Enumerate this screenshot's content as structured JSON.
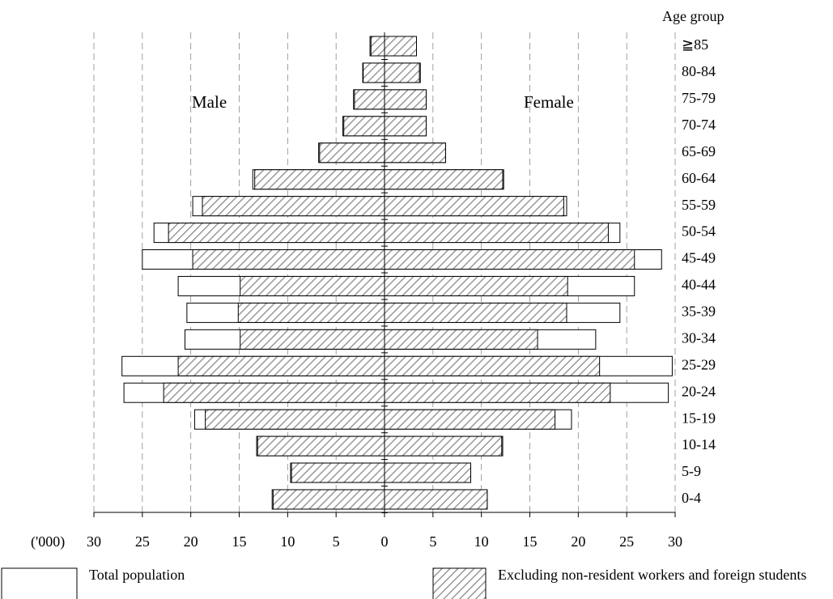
{
  "chart_data": {
    "type": "population_pyramid",
    "axis_title": "Age group",
    "left_label": "Male",
    "right_label": "Female",
    "unit_label": "('000)",
    "categories": [
      "≧85",
      "80-84",
      "75-79",
      "70-74",
      "65-69",
      "60-64",
      "55-59",
      "50-54",
      "45-49",
      "40-44",
      "35-39",
      "30-34",
      "25-29",
      "20-24",
      "15-19",
      "10-14",
      "5-9",
      "0-4"
    ],
    "series": [
      {
        "name": "Total population",
        "color": "#ffffff",
        "male": [
          1.5,
          2.25,
          3.2,
          4.3,
          6.8,
          13.6,
          19.8,
          23.8,
          25.0,
          21.3,
          20.4,
          20.6,
          27.1,
          26.9,
          19.6,
          13.2,
          9.7,
          11.6
        ],
        "female": [
          3.3,
          3.7,
          4.3,
          4.3,
          6.3,
          12.3,
          18.8,
          24.3,
          28.6,
          25.8,
          24.3,
          21.8,
          29.7,
          29.3,
          19.3,
          12.2,
          8.9,
          10.6
        ]
      },
      {
        "name": "Excluding non-resident workers and foreign students",
        "color": "#999999",
        "male": [
          1.4,
          2.2,
          3.1,
          4.2,
          6.7,
          13.4,
          18.8,
          22.3,
          19.8,
          14.9,
          15.1,
          14.9,
          21.3,
          22.8,
          18.5,
          13.1,
          9.6,
          11.5
        ],
        "female": [
          3.3,
          3.6,
          4.3,
          4.3,
          6.3,
          12.2,
          18.5,
          23.1,
          25.8,
          18.9,
          18.8,
          15.8,
          22.2,
          23.3,
          17.6,
          12.1,
          8.9,
          10.6
        ]
      }
    ],
    "xlim": [
      0,
      30
    ],
    "xticks": [
      0,
      5,
      10,
      15,
      20,
      25,
      30
    ],
    "grid": true
  }
}
